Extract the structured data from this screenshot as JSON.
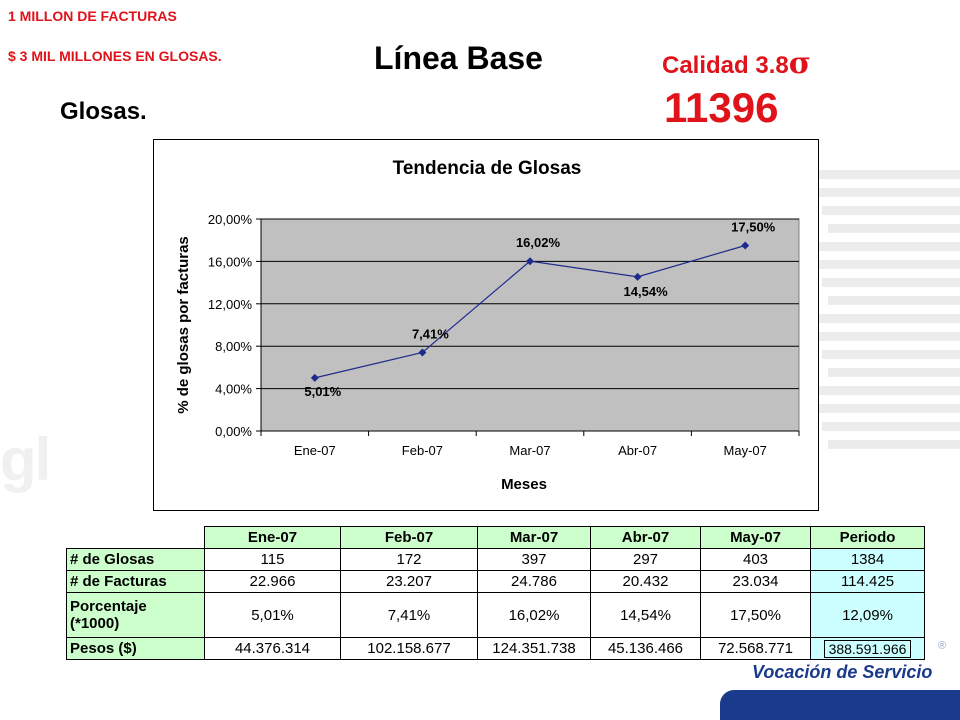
{
  "header": {
    "line1": "1 MILLON DE FACTURAS",
    "line2": "$ 3 MIL MILLONES EN GLOSAS.",
    "title": "Línea Base",
    "calidad_label": "Calidad 3.8",
    "sigma_symbol": "σ",
    "big_number": "11396",
    "subtitle": "Glosas."
  },
  "colors": {
    "accent_red": "#e0121a",
    "line_blue": "#1f2a8c",
    "plot_gray": "#c0c0c0",
    "table_green": "#ccffcc",
    "table_cyan": "#ccffff"
  },
  "chart_data": {
    "type": "line",
    "title": "Tendencia de Glosas",
    "xlabel": "Meses",
    "ylabel": "% de glosas por facturas",
    "categories": [
      "Ene-07",
      "Feb-07",
      "Mar-07",
      "Abr-07",
      "May-07"
    ],
    "values": [
      5.01,
      7.41,
      16.02,
      14.54,
      17.5
    ],
    "data_labels": [
      "5,01%",
      "7,41%",
      "16,02%",
      "14,54%",
      "17,50%"
    ],
    "yticks": [
      "0,00%",
      "4,00%",
      "8,00%",
      "12,00%",
      "16,00%",
      "20,00%"
    ],
    "ylim": [
      0,
      20
    ],
    "grid": true,
    "legend": "none"
  },
  "table": {
    "columns": [
      "Ene-07",
      "Feb-07",
      "Mar-07",
      "Abr-07",
      "May-07",
      "Periodo"
    ],
    "rows": [
      {
        "label": "# de Glosas",
        "values": [
          "115",
          "172",
          "397",
          "297",
          "403",
          "1384"
        ]
      },
      {
        "label": "# de Facturas",
        "values": [
          "22.966",
          "23.207",
          "24.786",
          "20.432",
          "23.034",
          "114.425"
        ]
      },
      {
        "label_line1": "Porcentaje",
        "label_line2": "(*1000)",
        "values": [
          "5,01%",
          "7,41%",
          "16,02%",
          "14,54%",
          "17,50%",
          "12,09%"
        ]
      },
      {
        "label": "Pesos ($)",
        "values": [
          "44.376.314",
          "102.158.677",
          "124.351.738",
          "45.136.466",
          "72.568.771",
          "388.591.966"
        ]
      }
    ]
  },
  "footer": {
    "slogan": "Vocación de Servicio",
    "registered": "®"
  }
}
